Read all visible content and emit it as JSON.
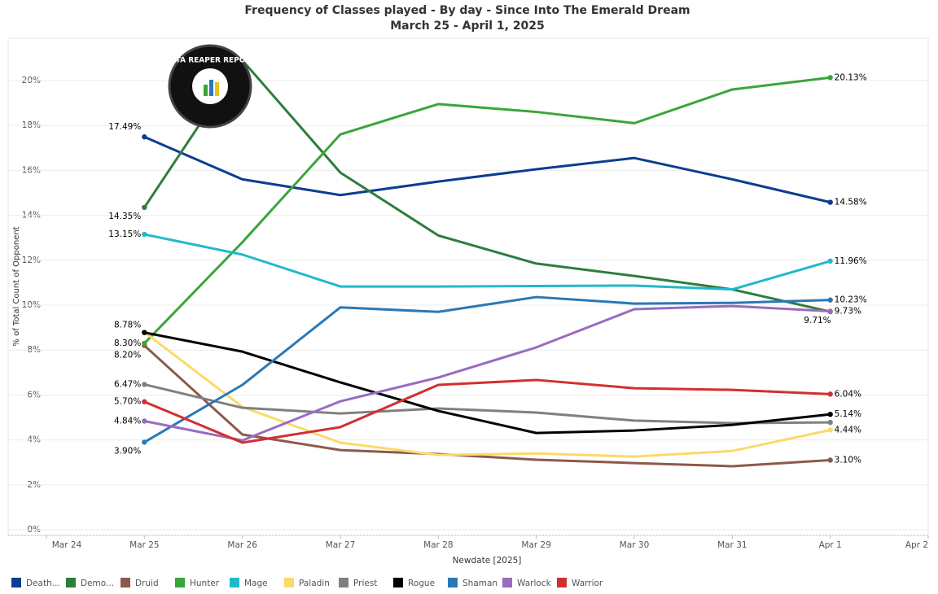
{
  "chart_data": {
    "type": "line",
    "title": "Frequency of Classes played - By day - Since Into The Emerald Dream",
    "subtitle": "March 25 - April 1, 2025",
    "logo_text": "DATA REAPER REPORT",
    "x_label": "Newdate [2025]",
    "y_label": "% of Total Count of Opponent",
    "categories": [
      "Mar 24",
      "Mar 25",
      "Mar 26",
      "Mar 27",
      "Mar 28",
      "Mar 29",
      "Mar 30",
      "Mar 31",
      "Apr 1",
      "Apr 2"
    ],
    "ylim": [
      -0.25,
      21.88
    ],
    "yticks": [
      {
        "value": 0,
        "label": "0%"
      },
      {
        "value": 2,
        "label": "2%"
      },
      {
        "value": 4,
        "label": "4%"
      },
      {
        "value": 6,
        "label": "6%"
      },
      {
        "value": 8,
        "label": "8%"
      },
      {
        "value": 10,
        "label": "10%"
      },
      {
        "value": 12,
        "label": "12%"
      },
      {
        "value": 14,
        "label": "14%"
      },
      {
        "value": 16,
        "label": "16%"
      },
      {
        "value": 18,
        "label": "18%"
      },
      {
        "value": 20,
        "label": "20%"
      }
    ],
    "grid": true,
    "series": [
      {
        "name": "Death...",
        "color": "#0b3d91",
        "values": [
          null,
          17.49,
          15.6,
          14.9,
          15.5,
          16.05,
          16.55,
          15.6,
          14.58,
          null
        ],
        "value_labels": [
          null,
          "17.49%",
          null,
          null,
          null,
          null,
          null,
          null,
          "14.58%",
          null
        ]
      },
      {
        "name": "Demo...",
        "color": "#2e7d3e",
        "values": [
          null,
          14.35,
          20.9,
          15.9,
          13.1,
          11.85,
          11.3,
          10.7,
          9.71,
          null
        ],
        "value_labels": [
          null,
          "14.35%",
          null,
          null,
          null,
          null,
          null,
          null,
          "9.71%",
          null
        ]
      },
      {
        "name": "Druid",
        "color": "#8c5a4a",
        "values": [
          null,
          8.2,
          4.24,
          3.55,
          3.37,
          3.12,
          2.97,
          2.83,
          3.1,
          null
        ],
        "value_labels": [
          null,
          "8.20%",
          null,
          null,
          null,
          null,
          null,
          null,
          "3.10%",
          null
        ]
      },
      {
        "name": "Hunter",
        "color": "#3aa53a",
        "values": [
          null,
          8.3,
          12.8,
          17.6,
          18.95,
          18.6,
          18.1,
          19.6,
          20.13,
          null
        ],
        "value_labels": [
          null,
          "8.30%",
          null,
          null,
          null,
          null,
          null,
          null,
          "20.13%",
          null
        ]
      },
      {
        "name": "Mage",
        "color": "#22b8cc",
        "values": [
          null,
          13.15,
          12.25,
          10.83,
          10.83,
          10.85,
          10.87,
          10.7,
          11.96,
          null
        ],
        "value_labels": [
          null,
          "13.15%",
          null,
          null,
          null,
          null,
          null,
          null,
          "11.96%",
          null
        ]
      },
      {
        "name": "Paladin",
        "color": "#fcd96a",
        "values": [
          null,
          8.8,
          5.47,
          3.88,
          3.33,
          3.4,
          3.26,
          3.51,
          4.44,
          null
        ],
        "value_labels": [
          null,
          null,
          null,
          null,
          null,
          null,
          null,
          null,
          "4.44%",
          null
        ]
      },
      {
        "name": "Priest",
        "color": "#808080",
        "values": [
          null,
          6.47,
          5.43,
          5.18,
          5.4,
          5.22,
          4.86,
          4.75,
          4.78,
          null
        ],
        "value_labels": [
          null,
          "6.47%",
          null,
          null,
          null,
          null,
          null,
          null,
          null,
          null
        ]
      },
      {
        "name": "Rogue",
        "color": "#000000",
        "values": [
          null,
          8.78,
          7.93,
          6.56,
          5.29,
          4.31,
          4.42,
          4.67,
          5.14,
          null
        ],
        "value_labels": [
          null,
          "8.78%",
          null,
          null,
          null,
          null,
          null,
          null,
          "5.14%",
          null
        ]
      },
      {
        "name": "Shaman",
        "color": "#2a78b5",
        "values": [
          null,
          3.9,
          6.45,
          9.9,
          9.7,
          10.36,
          10.07,
          10.1,
          10.23,
          null
        ],
        "value_labels": [
          null,
          "3.90%",
          null,
          null,
          null,
          null,
          null,
          null,
          "10.23%",
          null
        ]
      },
      {
        "name": "Warlock",
        "color": "#9b6bbf",
        "values": [
          null,
          4.84,
          3.98,
          5.72,
          6.78,
          8.12,
          9.82,
          9.96,
          9.73,
          null
        ],
        "value_labels": [
          null,
          "4.84%",
          null,
          null,
          null,
          null,
          null,
          null,
          "9.73%",
          null
        ]
      },
      {
        "name": "Warrior",
        "color": "#d32f2f",
        "values": [
          null,
          5.7,
          3.88,
          4.57,
          6.45,
          6.67,
          6.3,
          6.23,
          6.04,
          null
        ],
        "value_labels": [
          null,
          "5.70%",
          null,
          null,
          null,
          null,
          null,
          null,
          "6.04%",
          null
        ]
      }
    ]
  }
}
